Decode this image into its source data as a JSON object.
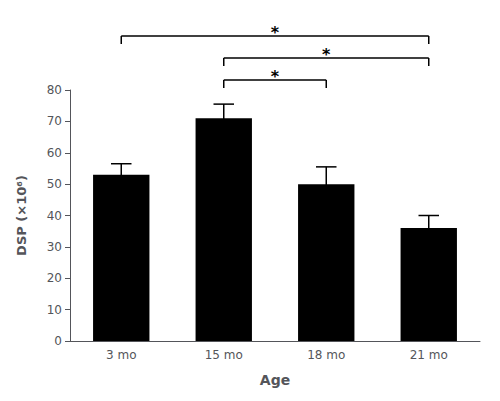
{
  "chart_data": {
    "type": "bar",
    "categories": [
      "3 mo",
      "15 mo",
      "18 mo",
      "21 mo"
    ],
    "values": [
      53,
      71,
      50,
      36
    ],
    "errors": [
      3.5,
      4.5,
      5.5,
      4.0
    ],
    "color": "#000000",
    "xlabel": "Age",
    "ylabel": "DSP (×10⁶)",
    "ylim": [
      0,
      80
    ],
    "yticks": [
      0,
      10,
      20,
      30,
      40,
      50,
      60,
      70,
      80
    ],
    "grid": false,
    "annotations": [
      {
        "text": "*",
        "from": "3 mo",
        "to": "21 mo"
      },
      {
        "text": "*",
        "from": "15 mo",
        "to": "21 mo"
      },
      {
        "text": "*",
        "from": "15 mo",
        "to": "18 mo"
      }
    ]
  }
}
